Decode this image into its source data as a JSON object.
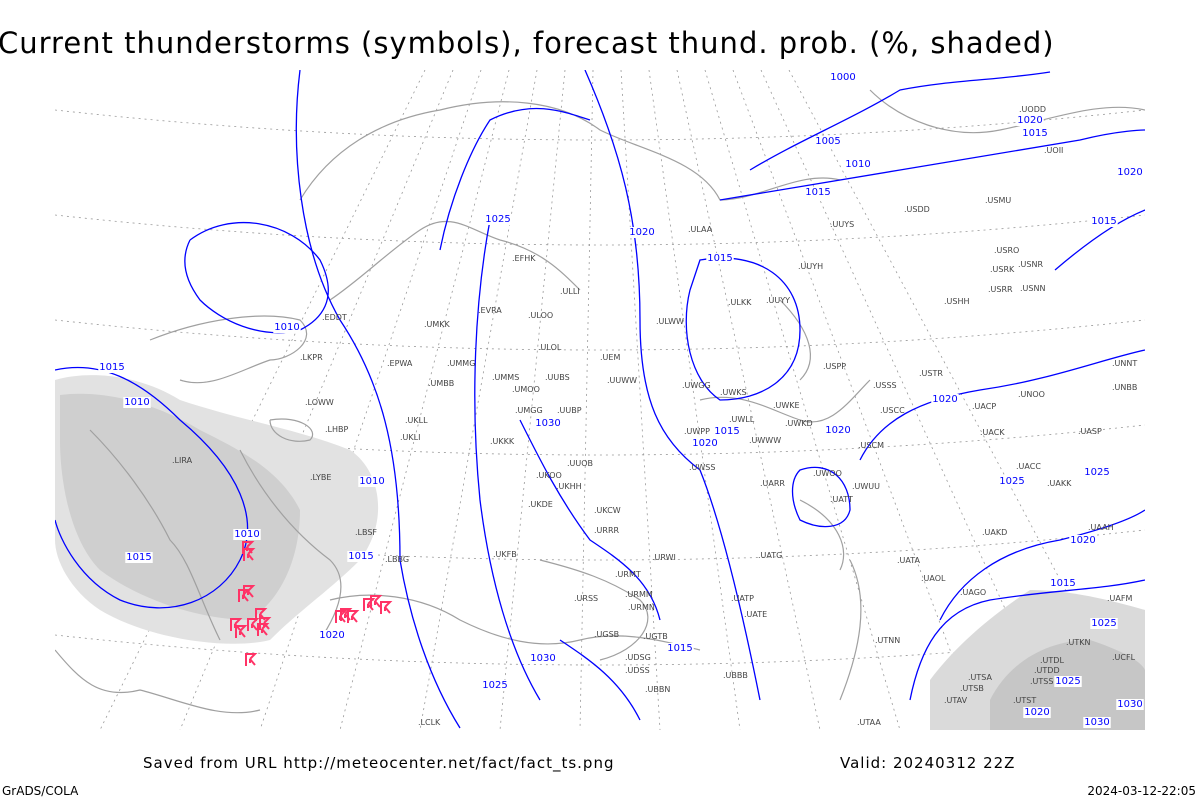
{
  "title": "Current thunderstorms (symbols), forecast thund. prob. (%, shaded)",
  "footer": {
    "saved_from": "Saved from URL http://meteocenter.net/fact/fact_ts.png",
    "valid": "Valid: 20240312 22Z",
    "software": "GrADS/COLA",
    "generated": "2024-03-12-22:05"
  },
  "colors": {
    "isobar": "#0000ff",
    "coast": "#a0a0a0",
    "thunderstorm_symbol": "#ff3366",
    "shading": "#d8d8d8"
  },
  "isobar_labels": [
    "1000",
    "1005",
    "1010",
    "1015",
    "1015",
    "1020",
    "1020",
    "1015",
    "1025",
    "1020",
    "1015",
    "1010",
    "1015",
    "1010",
    "1010",
    "1030",
    "1015",
    "1010",
    "1020",
    "1015",
    "1020",
    "1030",
    "1025",
    "1020",
    "1020",
    "1025",
    "1025",
    "1020",
    "1015",
    "1025",
    "1025",
    "1030",
    "1020",
    "1030",
    "1015",
    "1015"
  ],
  "stations": [
    "EDDT",
    "LKPR",
    "EPWA",
    "LOWW",
    "LHBP",
    "LIRA",
    "LYBE",
    "LBSF",
    "LBBG",
    "UMKK",
    "EVRA",
    "UMMG",
    "UMBB",
    "UKLL",
    "UKLI",
    "UKKK",
    "ULOO",
    "ULOL",
    "UMMS",
    "UMOO",
    "UUBS",
    "UMGG",
    "UUBP",
    "UUOB",
    "UKFB",
    "UKDE",
    "UKHH",
    "UKOO",
    "UKCW",
    "URRR",
    "URWI",
    "URMT",
    "URMM",
    "URMN",
    "URSS",
    "UGSB",
    "UGTB",
    "UBBN",
    "UDSG",
    "UBBB",
    "ULLI",
    "EFHK",
    "ULAA",
    "ULWW",
    "UEM",
    "UUWW",
    "UWGG",
    "UWKS",
    "UWKE",
    "UWWW",
    "UWLL",
    "UWSS",
    "UWPP",
    "UWKD",
    "UARR",
    "UATG",
    "UATT",
    "UATE",
    "UATP",
    "UWOO",
    "UWUU",
    "USSS",
    "USCC",
    "USCM",
    "USTR",
    "USPP",
    "UUYH",
    "UUYY",
    "ULKK",
    "UUYS",
    "USDD",
    "USMU",
    "USRO",
    "USRK",
    "USNR",
    "USRR",
    "USNN",
    "USHH",
    "UNOO",
    "UACP",
    "UACK",
    "UASP",
    "UACC",
    "UAKK",
    "UAKD",
    "UAAH",
    "UATA",
    "UAOL",
    "UAGO",
    "UTNN",
    "UTSA",
    "UTSB",
    "UTAV",
    "UTST",
    "UTDD",
    "UTDL",
    "UTSS",
    "UTKN",
    "UAFM",
    "UCFL",
    "UTAA",
    "LCLK",
    "UDSS",
    "UNNT",
    "UNBB",
    "UOII",
    "UODD"
  ],
  "thunderstorm_count": 17
}
